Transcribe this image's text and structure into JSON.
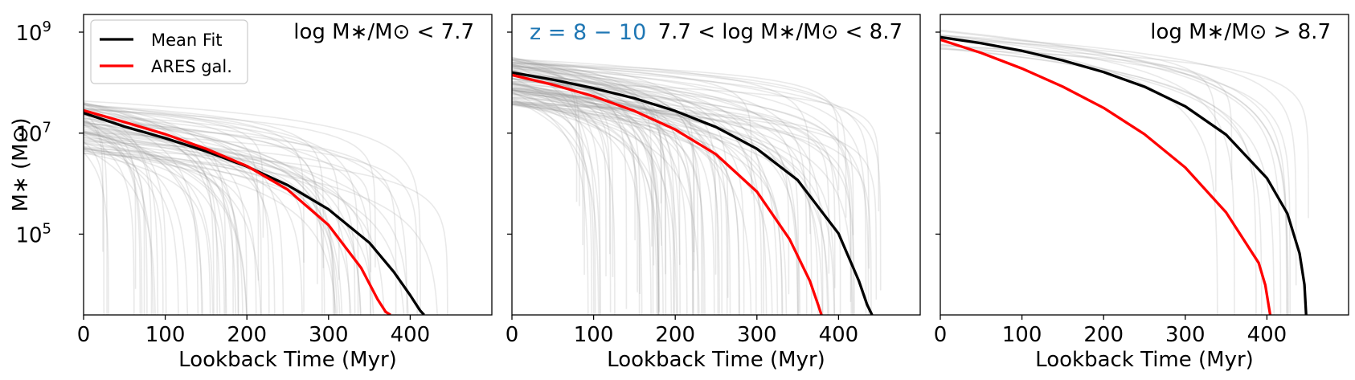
{
  "chart_data": [
    {
      "type": "line",
      "title": "log M∗/M⊙ < 7.7",
      "xlabel": "Lookback Time (Myr)",
      "ylabel": "M∗ (M⊙)",
      "x_ticks": [
        "0",
        "100",
        "200",
        "300",
        "400"
      ],
      "y_ticks": [
        {
          "base": "10",
          "exp": "9"
        },
        {
          "base": "10",
          "exp": "7"
        },
        {
          "base": "10",
          "exp": "5"
        }
      ],
      "xlim": [
        0,
        500
      ],
      "ylim_log10": [
        3.4,
        9.35
      ],
      "yscale": "log",
      "legend": {
        "position": "upper-left",
        "entries": [
          {
            "label": "Mean Fit",
            "color": "#000000"
          },
          {
            "label": "ARES gal.",
            "color": "#ff0000"
          }
        ]
      },
      "background_tracks": {
        "color": "#999999",
        "count": 80,
        "log10_m0_range": [
          6.6,
          7.65
        ],
        "t_form_range_myr": [
          22,
          450
        ]
      },
      "series": [
        {
          "name": "Mean Fit",
          "color": "#000000",
          "x": [
            0,
            50,
            100,
            150,
            200,
            250,
            300,
            350,
            380,
            400,
            412,
            417
          ],
          "log10_y": [
            7.4,
            7.13,
            6.9,
            6.64,
            6.34,
            5.97,
            5.49,
            4.83,
            4.25,
            3.79,
            3.49,
            3.4
          ]
        },
        {
          "name": "ARES gal.",
          "color": "#ff0000",
          "x": [
            0,
            50,
            100,
            150,
            200,
            250,
            300,
            340,
            360,
            370,
            376
          ],
          "log10_y": [
            7.45,
            7.22,
            6.98,
            6.69,
            6.35,
            5.88,
            5.18,
            4.33,
            3.71,
            3.46,
            3.4
          ]
        }
      ]
    },
    {
      "type": "line",
      "title": "7.7 < log M∗/M⊙ < 8.7",
      "annotation": "z = 8 − 10",
      "annotation_color": "#1f77b4",
      "xlabel": "Lookback Time (Myr)",
      "x_ticks": [
        "0",
        "100",
        "200",
        "300",
        "400"
      ],
      "xlim": [
        0,
        500
      ],
      "ylim_log10": [
        3.4,
        9.35
      ],
      "yscale": "log",
      "background_tracks": {
        "color": "#999999",
        "count": 110,
        "log10_m0_range": [
          7.55,
          8.5
        ],
        "t_form_range_myr": [
          68,
          452
        ]
      },
      "series": [
        {
          "name": "Mean Fit",
          "color": "#000000",
          "x": [
            0,
            50,
            100,
            150,
            200,
            250,
            300,
            350,
            400,
            425,
            435,
            441
          ],
          "log10_y": [
            8.2,
            8.06,
            7.89,
            7.69,
            7.44,
            7.12,
            6.69,
            6.07,
            5.01,
            4.07,
            3.6,
            3.4
          ]
        },
        {
          "name": "ARES gal.",
          "color": "#ff0000",
          "x": [
            0,
            50,
            100,
            150,
            200,
            250,
            300,
            340,
            365,
            375,
            379
          ],
          "log10_y": [
            8.15,
            7.96,
            7.73,
            7.44,
            7.07,
            6.58,
            5.84,
            4.9,
            4.07,
            3.6,
            3.4
          ]
        }
      ]
    },
    {
      "type": "line",
      "title": "log M∗/M⊙ > 8.7",
      "xlabel": "Lookback Time (Myr)",
      "x_ticks": [
        "0",
        "100",
        "200",
        "300",
        "400"
      ],
      "xlim": [
        0,
        500
      ],
      "ylim_log10": [
        3.4,
        9.35
      ],
      "yscale": "log",
      "background_tracks": {
        "color": "#999999",
        "count": 14,
        "log10_m0_range": [
          8.65,
          9.05
        ],
        "t_form_range_myr": [
          335,
          455
        ]
      },
      "series": [
        {
          "name": "Mean Fit",
          "color": "#000000",
          "x": [
            0,
            50,
            100,
            150,
            200,
            250,
            300,
            350,
            400,
            425,
            440,
            446,
            448
          ],
          "log10_y": [
            8.9,
            8.78,
            8.63,
            8.44,
            8.21,
            7.92,
            7.53,
            6.97,
            6.11,
            5.41,
            4.62,
            4.0,
            3.4
          ]
        },
        {
          "name": "ARES gal.",
          "color": "#ff0000",
          "x": [
            0,
            50,
            100,
            150,
            200,
            250,
            300,
            350,
            390,
            398,
            402,
            404
          ],
          "log10_y": [
            8.85,
            8.59,
            8.28,
            7.92,
            7.5,
            6.98,
            6.32,
            5.43,
            4.43,
            3.99,
            3.6,
            3.4
          ]
        }
      ]
    }
  ]
}
